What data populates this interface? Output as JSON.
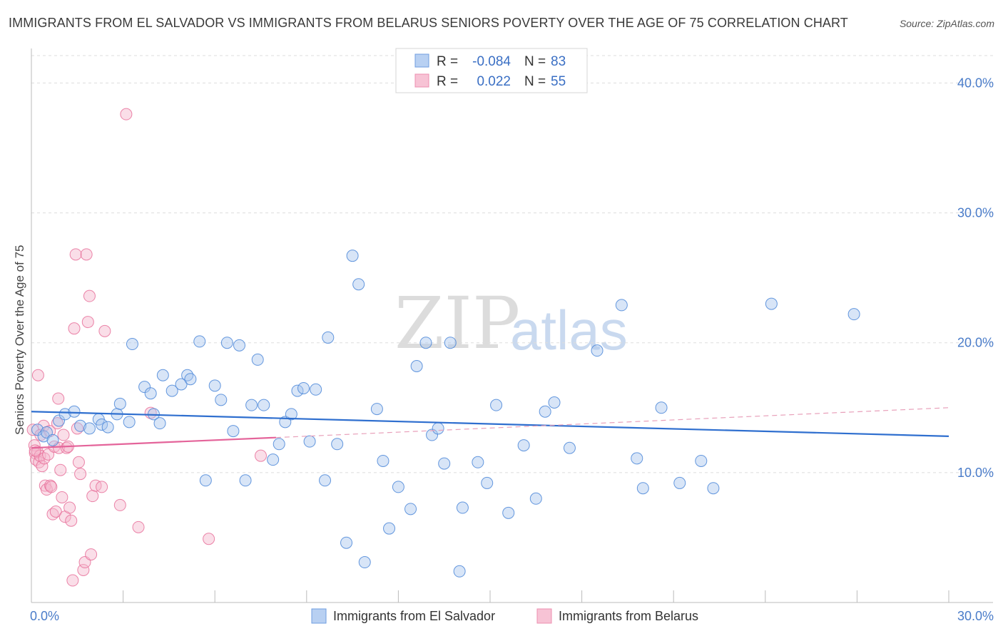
{
  "title": "IMMIGRANTS FROM EL SALVADOR VS IMMIGRANTS FROM BELARUS SENIORS POVERTY OVER THE AGE OF 75 CORRELATION CHART",
  "source": "Source: ZipAtlas.com",
  "watermark": {
    "zip": "ZIP",
    "atlas": "atlas"
  },
  "legend": {
    "row1": {
      "r_label": "R =",
      "r_value": "-0.084",
      "n_label": "N =",
      "n_value": "83"
    },
    "row2": {
      "r_label": "R =",
      "r_value": "0.022",
      "n_label": "N =",
      "n_value": "55"
    }
  },
  "colors": {
    "blue": "#4a86d8",
    "blue_fill": "#a9c6ee",
    "pink": "#e8709a",
    "pink_fill": "#f4b6cb",
    "axis_text": "#4a7cc9"
  },
  "chart_data": {
    "type": "scatter",
    "title": "IMMIGRANTS FROM EL SALVADOR VS IMMIGRANTS FROM BELARUS SENIORS POVERTY OVER THE AGE OF 75 CORRELATION CHART",
    "xlabel": "",
    "ylabel": "Seniors Poverty Over the Age of 75",
    "xlim": [
      0,
      30
    ],
    "ylim": [
      0,
      42
    ],
    "x_tick_labels": [
      {
        "value": 0,
        "label": "0.0%"
      },
      {
        "value": 30,
        "label": "30.0%"
      }
    ],
    "y_tick_labels": [
      {
        "value": 10,
        "label": "10.0%"
      },
      {
        "value": 20,
        "label": "20.0%"
      },
      {
        "value": 30,
        "label": "30.0%"
      },
      {
        "value": 40,
        "label": "40.0%"
      }
    ],
    "series": [
      {
        "name": "Immigrants from El Salvador",
        "color": "#4a86d8",
        "trend": {
          "x": [
            0,
            30
          ],
          "y": [
            14.7,
            12.8
          ],
          "style": "solid"
        },
        "points": [
          [
            0.2,
            13.3
          ],
          [
            0.4,
            12.8
          ],
          [
            0.5,
            13.1
          ],
          [
            0.7,
            12.5
          ],
          [
            0.9,
            14.0
          ],
          [
            1.1,
            14.5
          ],
          [
            1.4,
            14.7
          ],
          [
            1.6,
            13.6
          ],
          [
            1.9,
            13.4
          ],
          [
            2.2,
            14.1
          ],
          [
            2.3,
            13.7
          ],
          [
            2.5,
            13.5
          ],
          [
            2.8,
            14.5
          ],
          [
            2.9,
            15.3
          ],
          [
            3.2,
            13.9
          ],
          [
            3.3,
            19.9
          ],
          [
            3.7,
            16.6
          ],
          [
            3.9,
            16.1
          ],
          [
            4.0,
            14.5
          ],
          [
            4.2,
            13.8
          ],
          [
            4.3,
            17.5
          ],
          [
            4.6,
            16.3
          ],
          [
            4.9,
            16.8
          ],
          [
            5.1,
            17.5
          ],
          [
            5.2,
            17.2
          ],
          [
            5.5,
            20.1
          ],
          [
            5.7,
            9.4
          ],
          [
            6.0,
            16.7
          ],
          [
            6.2,
            15.6
          ],
          [
            6.4,
            20.0
          ],
          [
            6.6,
            13.2
          ],
          [
            6.8,
            19.8
          ],
          [
            7.0,
            9.4
          ],
          [
            7.2,
            15.2
          ],
          [
            7.4,
            18.7
          ],
          [
            7.6,
            15.2
          ],
          [
            7.9,
            11.0
          ],
          [
            8.1,
            12.2
          ],
          [
            8.3,
            13.9
          ],
          [
            8.5,
            14.5
          ],
          [
            8.7,
            16.3
          ],
          [
            8.9,
            16.5
          ],
          [
            9.1,
            12.4
          ],
          [
            9.3,
            16.4
          ],
          [
            9.6,
            9.4
          ],
          [
            9.7,
            20.4
          ],
          [
            10.0,
            12.2
          ],
          [
            10.3,
            4.6
          ],
          [
            10.5,
            26.7
          ],
          [
            10.7,
            24.5
          ],
          [
            10.9,
            3.1
          ],
          [
            11.3,
            14.9
          ],
          [
            11.5,
            10.9
          ],
          [
            11.7,
            5.7
          ],
          [
            12.0,
            8.9
          ],
          [
            12.4,
            7.2
          ],
          [
            12.6,
            18.2
          ],
          [
            12.9,
            20.0
          ],
          [
            13.1,
            12.9
          ],
          [
            13.3,
            13.4
          ],
          [
            13.5,
            10.7
          ],
          [
            13.7,
            20.0
          ],
          [
            14.0,
            2.4
          ],
          [
            14.1,
            7.3
          ],
          [
            14.6,
            10.8
          ],
          [
            14.9,
            9.2
          ],
          [
            15.2,
            15.2
          ],
          [
            15.6,
            6.9
          ],
          [
            16.1,
            12.1
          ],
          [
            16.5,
            8.0
          ],
          [
            16.8,
            14.7
          ],
          [
            17.1,
            15.4
          ],
          [
            17.6,
            11.9
          ],
          [
            18.5,
            19.4
          ],
          [
            19.3,
            22.9
          ],
          [
            19.8,
            11.1
          ],
          [
            20.0,
            8.8
          ],
          [
            20.6,
            15.0
          ],
          [
            21.2,
            9.2
          ],
          [
            21.9,
            10.9
          ],
          [
            22.3,
            8.8
          ],
          [
            24.2,
            23.0
          ],
          [
            26.9,
            22.2
          ]
        ]
      },
      {
        "name": "Immigrants from Belarus",
        "color": "#e8709a",
        "trend": {
          "x": [
            0,
            8
          ],
          "y": [
            11.9,
            12.7
          ],
          "style": "solid"
        },
        "trend_extension": {
          "x": [
            8,
            30
          ],
          "y": [
            12.7,
            15.0
          ],
          "style": "dashed"
        },
        "points": [
          [
            0.05,
            13.3
          ],
          [
            0.1,
            12.1
          ],
          [
            0.12,
            11.5
          ],
          [
            0.15,
            11.0
          ],
          [
            0.2,
            11.6
          ],
          [
            0.25,
            10.8
          ],
          [
            0.28,
            11.3
          ],
          [
            0.3,
            12.9
          ],
          [
            0.35,
            10.5
          ],
          [
            0.4,
            13.6
          ],
          [
            0.42,
            11.1
          ],
          [
            0.45,
            9.0
          ],
          [
            0.5,
            8.7
          ],
          [
            0.55,
            11.4
          ],
          [
            0.6,
            13.2
          ],
          [
            0.62,
            9.0
          ],
          [
            0.65,
            8.9
          ],
          [
            0.7,
            6.8
          ],
          [
            0.75,
            12.0
          ],
          [
            0.8,
            7.0
          ],
          [
            0.85,
            13.8
          ],
          [
            0.88,
            15.7
          ],
          [
            0.9,
            11.9
          ],
          [
            0.95,
            10.2
          ],
          [
            1.0,
            8.1
          ],
          [
            1.05,
            12.9
          ],
          [
            1.1,
            6.6
          ],
          [
            1.15,
            11.9
          ],
          [
            1.2,
            12.0
          ],
          [
            1.25,
            7.3
          ],
          [
            1.3,
            6.3
          ],
          [
            1.35,
            1.7
          ],
          [
            1.4,
            21.1
          ],
          [
            1.45,
            26.8
          ],
          [
            1.5,
            13.4
          ],
          [
            1.55,
            10.8
          ],
          [
            1.6,
            9.9
          ],
          [
            1.7,
            2.5
          ],
          [
            1.75,
            3.1
          ],
          [
            1.8,
            26.8
          ],
          [
            1.85,
            21.6
          ],
          [
            1.9,
            23.6
          ],
          [
            1.95,
            3.7
          ],
          [
            2.0,
            8.2
          ],
          [
            2.1,
            9.0
          ],
          [
            2.3,
            8.9
          ],
          [
            2.4,
            20.9
          ],
          [
            2.9,
            7.5
          ],
          [
            3.1,
            37.6
          ],
          [
            3.5,
            5.8
          ],
          [
            3.9,
            14.6
          ],
          [
            5.8,
            4.9
          ],
          [
            7.5,
            11.3
          ],
          [
            0.12,
            11.7
          ],
          [
            0.22,
            17.5
          ]
        ]
      }
    ]
  },
  "bottom_legend": {
    "series1": "Immigrants from El Salvador",
    "series2": "Immigrants from Belarus"
  }
}
